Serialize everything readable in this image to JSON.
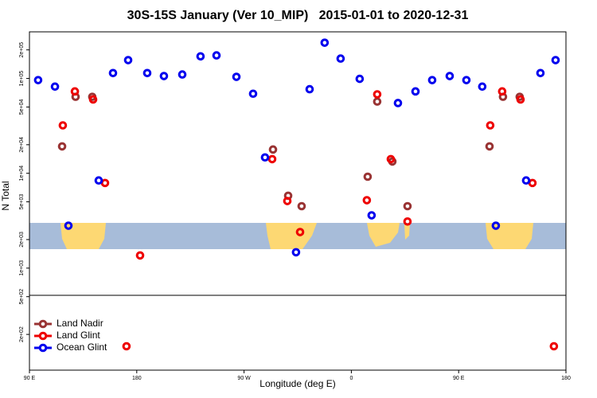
{
  "chart_data": {
    "type": "scatter",
    "title": "30S-15S January (Ver 10_MIP)   2015-01-01 to 2020-12-31",
    "x_label": "Longitude (deg E)",
    "y_label": "N Total",
    "log_y": true,
    "legend": "lower left",
    "xlim": [
      90,
      540
    ],
    "xticks": [
      {
        "value": 90,
        "label": "90 E"
      },
      {
        "value": 180,
        "label": "180"
      },
      {
        "value": 270,
        "label": "90 W"
      },
      {
        "value": 360,
        "label": "0"
      },
      {
        "value": 450,
        "label": "90 E"
      },
      {
        "value": 540,
        "label": "180"
      }
    ],
    "ylim": [
      84,
      310000
    ],
    "yticks": [
      {
        "value": 200,
        "label": "2e+02"
      },
      {
        "value": 500,
        "label": "5e+02"
      },
      {
        "value": 1000,
        "label": "1e+03"
      },
      {
        "value": 2000,
        "label": "2e+03"
      },
      {
        "value": 5000,
        "label": "5e+03"
      },
      {
        "value": 10000,
        "label": "1e+04"
      },
      {
        "value": 20000,
        "label": "2e+04"
      },
      {
        "value": 50000,
        "label": "5e+04"
      },
      {
        "value": 100000,
        "label": "1e+05"
      },
      {
        "value": 200000,
        "label": "2e+05"
      }
    ],
    "series": [
      {
        "name": "Land Nadir",
        "color": "#993333",
        "x": [
          117.4,
          128.7,
          142.7,
          294.3,
          307.0,
          318.3,
          373.7,
          381.7,
          394.4,
          407.1,
          475.9,
          487.2,
          501.2
        ],
        "values": [
          19200,
          64000,
          64000,
          17800,
          5800,
          4500,
          9200,
          57000,
          13300,
          4500,
          19200,
          64000,
          64000
        ]
      },
      {
        "name": "Land Glint",
        "color": "#ee0000",
        "x": [
          118.0,
          128.1,
          143.4,
          153.4,
          182.8,
          293.6,
          306.3,
          317.0,
          373.0,
          381.7,
          393.1,
          407.1,
          476.5,
          486.5,
          501.9,
          511.9,
          171.4,
          529.9
        ],
        "values": [
          32000,
          73000,
          60000,
          7900,
          1360,
          14100,
          5100,
          2400,
          5200,
          68000,
          14100,
          3100,
          32000,
          73000,
          60000,
          7900,
          150,
          150
        ]
      },
      {
        "name": "Ocean Glint",
        "color": "#0000ee",
        "x": [
          97.3,
          111.4,
          122.7,
          148.1,
          160.1,
          172.8,
          188.8,
          202.8,
          218.2,
          233.5,
          246.9,
          263.6,
          277.6,
          287.6,
          313.6,
          325.0,
          337.6,
          351.0,
          367.0,
          377.0,
          399.1,
          413.8,
          427.8,
          442.5,
          456.5,
          469.8,
          481.2,
          506.6,
          518.6,
          531.3
        ],
        "values": [
          96000,
          82000,
          2800,
          8400,
          114000,
          156000,
          114000,
          106000,
          110000,
          171000,
          175000,
          104000,
          69000,
          14700,
          1470,
          77000,
          238000,
          162000,
          99000,
          3600,
          55000,
          73000,
          96000,
          106000,
          96000,
          82000,
          2800,
          8400,
          114000,
          156000
        ]
      }
    ]
  }
}
